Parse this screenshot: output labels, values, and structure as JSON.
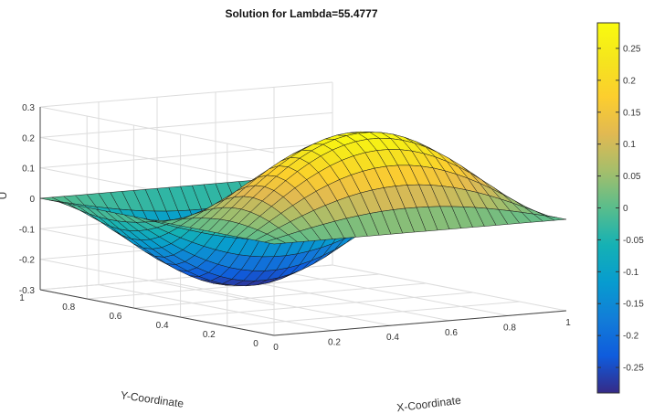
{
  "chart_data": {
    "type": "surface",
    "title": "Solution for Lambda=55.4777",
    "xlabel": "X-Coordinate",
    "ylabel": "Y-Coordinate",
    "zlabel": "U",
    "xlim": [
      0,
      1
    ],
    "ylim": [
      0,
      1
    ],
    "zlim": [
      -0.3,
      0.3
    ],
    "x_ticks": [
      "0",
      "0.2",
      "0.4",
      "0.6",
      "0.8",
      "1"
    ],
    "y_ticks": [
      "0",
      "0.2",
      "0.4",
      "0.6",
      "0.8",
      "1"
    ],
    "z_ticks": [
      "-0.3",
      "-0.2",
      "-0.1",
      "0",
      "0.1",
      "0.2",
      "0.3"
    ],
    "surface": {
      "function": "A*sin(pi*x)*sin(2*pi*y)",
      "amplitude": 0.29,
      "grid": 25
    },
    "colorbar": {
      "colormap": "parula",
      "range": [
        -0.29,
        0.29
      ],
      "ticks": [
        "0.25",
        "0.2",
        "0.15",
        "0.1",
        "0.05",
        "0",
        "-0.05",
        "-0.1",
        "-0.15",
        "-0.2",
        "-0.25"
      ]
    },
    "grid": true
  }
}
